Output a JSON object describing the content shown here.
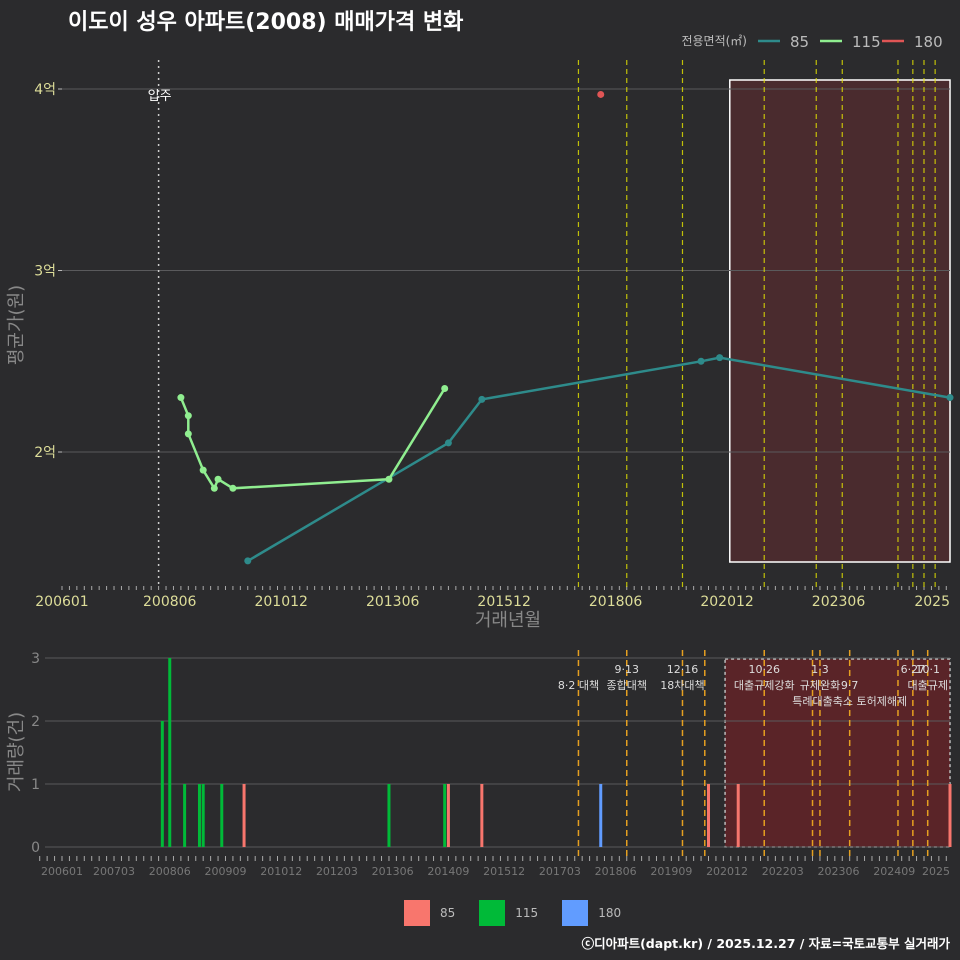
{
  "header": {
    "title": "이도이 성우 아파트(2008) 매매가격 변화",
    "credit": "ⓒ디아파트(dapt.kr) / 2025.12.27 / 자료=국토교통부 실거래가"
  },
  "colors": {
    "background": "#2b2b2d",
    "price_85": "#2e8b8b",
    "price_115": "#90ee90",
    "price_180": "#e05555",
    "vol_85": "#f8766d",
    "vol_115": "#00ba38",
    "vol_180": "#619cff",
    "policy_line_top": "#e6e600",
    "policy_line_bottom": "#e6a020",
    "highlight": "#5c2a2a"
  },
  "chart_data": [
    {
      "type": "line",
      "title": "이도이 성우 아파트(2008) 매매가격 변화",
      "xlabel": "거래년월",
      "ylabel": "평균가(원)",
      "xlim": [
        "2006-01",
        "2025-12"
      ],
      "ylim": [
        1.4,
        4.2
      ],
      "y_tick_values": [
        2,
        3,
        4
      ],
      "y_tick_labels": [
        "2억",
        "3억",
        "4억"
      ],
      "x_tick_values": [
        "2006-01",
        "2008-06",
        "2010-12",
        "2013-06",
        "2015-12",
        "2018-06",
        "2020-12",
        "2023-06",
        "2025-12"
      ],
      "x_tick_labels": [
        "200601",
        "200806",
        "201012",
        "201306",
        "201512",
        "201806",
        "202012",
        "202306",
        "2025"
      ],
      "legend_title": "전용면적(㎡)",
      "legend_position": "top-right",
      "move_in_label": "입주",
      "move_in_date": "2008-03",
      "series": [
        {
          "name": "85",
          "points": [
            [
              "2010-03",
              1.4
            ],
            [
              "2014-09",
              2.05
            ],
            [
              "2015-06",
              2.29
            ],
            [
              "2020-05",
              2.5
            ],
            [
              "2020-10",
              2.52
            ],
            [
              "2025-12",
              2.3
            ]
          ]
        },
        {
          "name": "115",
          "points": [
            [
              "2008-09",
              2.3
            ],
            [
              "2008-11",
              2.2
            ],
            [
              "2008-11",
              2.1
            ],
            [
              "2009-03",
              1.9
            ],
            [
              "2009-06",
              1.8
            ],
            [
              "2009-07",
              1.85
            ],
            [
              "2009-11",
              1.8
            ],
            [
              "2013-05",
              1.85
            ],
            [
              "2014-08",
              2.35
            ]
          ]
        },
        {
          "name": "180",
          "points": [
            [
              "2018-02",
              3.97
            ]
          ]
        }
      ],
      "policy_dates": [
        "2017-08",
        "2018-09",
        "2019-12",
        "2021-10",
        "2022-12",
        "2023-07",
        "2024-10",
        "2025-02",
        "2025-05",
        "2025-08"
      ],
      "highlight_range": [
        "2021-01",
        "2025-12"
      ]
    },
    {
      "type": "bar",
      "ylabel": "거래량(건)",
      "ylim": [
        0,
        3
      ],
      "y_tick_values": [
        0,
        1,
        2,
        3
      ],
      "y_tick_labels": [
        "0",
        "1",
        "2",
        "3"
      ],
      "x_tick_values": [
        "2006-01",
        "2007-03",
        "2008-06",
        "2009-09",
        "2010-12",
        "2012-03",
        "2013-06",
        "2014-09",
        "2015-12",
        "2017-03",
        "2018-06",
        "2019-09",
        "2020-12",
        "2022-03",
        "2023-06",
        "2024-09",
        "2025-12"
      ],
      "x_tick_labels": [
        "200601",
        "200703",
        "200806",
        "200909",
        "201012",
        "201203",
        "201306",
        "201409",
        "201512",
        "201703",
        "201806",
        "201909",
        "202012",
        "202203",
        "202306",
        "202409",
        "2025"
      ],
      "legend": [
        "85",
        "115",
        "180"
      ],
      "bars": [
        {
          "date": "2008-04",
          "series": "115",
          "value": 2
        },
        {
          "date": "2008-06",
          "series": "115",
          "value": 3
        },
        {
          "date": "2008-10",
          "series": "115",
          "value": 1
        },
        {
          "date": "2009-02",
          "series": "115",
          "value": 1
        },
        {
          "date": "2009-03",
          "series": "115",
          "value": 1
        },
        {
          "date": "2009-08",
          "series": "115",
          "value": 1
        },
        {
          "date": "2010-02",
          "series": "85",
          "value": 1
        },
        {
          "date": "2013-05",
          "series": "115",
          "value": 1
        },
        {
          "date": "2014-08",
          "series": "115",
          "value": 1
        },
        {
          "date": "2014-09",
          "series": "85",
          "value": 1
        },
        {
          "date": "2015-06",
          "series": "85",
          "value": 1
        },
        {
          "date": "2018-02",
          "series": "180",
          "value": 1
        },
        {
          "date": "2020-07",
          "series": "85",
          "value": 1
        },
        {
          "date": "2021-03",
          "series": "85",
          "value": 1
        },
        {
          "date": "2025-12",
          "series": "85",
          "value": 1
        }
      ],
      "policies": [
        {
          "date": "2017-08",
          "label": "8·2 대책",
          "row": 1
        },
        {
          "date": "2018-09",
          "label": "9·13",
          "row": 0
        },
        {
          "date": "2018-09",
          "label": "종합대책",
          "row": 1
        },
        {
          "date": "2019-12",
          "label": "12·16",
          "row": 0
        },
        {
          "date": "2019-12",
          "label": "18차대책",
          "row": 1
        },
        {
          "date": "2020-06",
          "label": "",
          "row": 0
        },
        {
          "date": "2021-10",
          "label": "10·26",
          "row": 0
        },
        {
          "date": "2021-10",
          "label": "대출규제강화",
          "row": 1
        },
        {
          "date": "2022-11",
          "label": "",
          "row": 0
        },
        {
          "date": "2023-01",
          "label": "1·3",
          "row": 0
        },
        {
          "date": "2023-01",
          "label": "규제완화",
          "row": 1
        },
        {
          "date": "2023-09",
          "label": "9·7",
          "row": 1
        },
        {
          "date": "2023-09",
          "label": "특례대출축소 토허제해제",
          "row": 2
        },
        {
          "date": "2024-10",
          "label": "",
          "row": 0
        },
        {
          "date": "2025-02",
          "label": "6·27",
          "row": 0
        },
        {
          "date": "2025-06",
          "label": "10·1",
          "row": 0
        },
        {
          "date": "2025-06",
          "label": "대출규제",
          "row": 1
        }
      ],
      "highlight_range": [
        "2020-12",
        "2025-12"
      ]
    }
  ]
}
